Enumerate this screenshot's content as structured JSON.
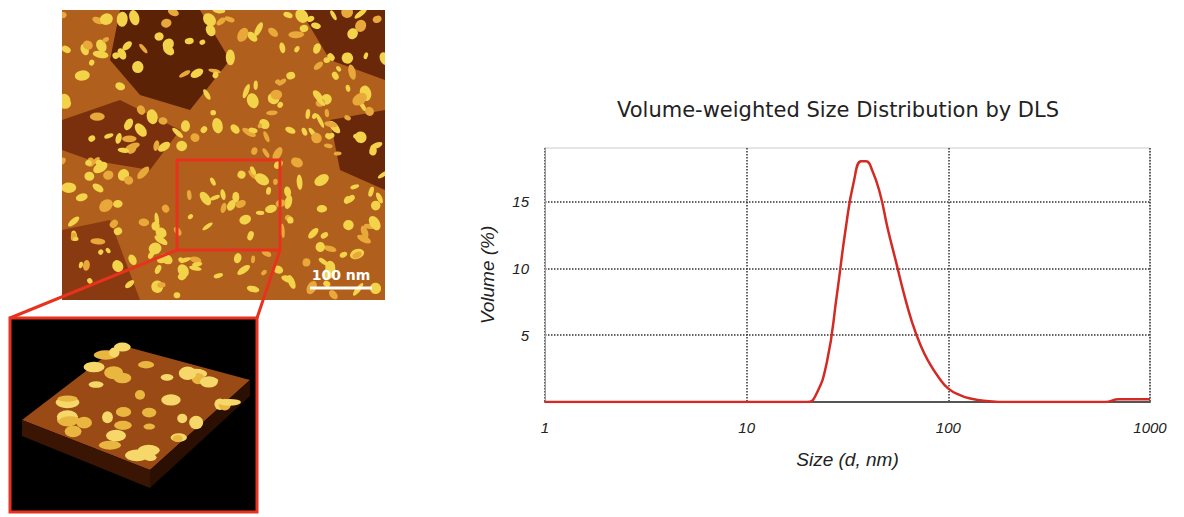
{
  "chart_data": {
    "type": "line",
    "title": "Volume-weighted Size Distribution by DLS",
    "x_label": "Size (d, nm)",
    "y_label": "Volume (%)",
    "annotations": [
      "100 nm"
    ],
    "x": [
      1,
      10,
      20,
      22,
      25,
      28,
      31,
      34,
      37,
      39,
      42,
      46,
      50,
      55,
      60,
      66,
      73,
      80,
      90,
      100,
      115,
      130,
      150,
      200,
      400,
      600,
      700,
      1000
    ],
    "values": [
      0,
      0,
      0,
      0.5,
      3,
      8,
      13,
      16.5,
      18,
      18,
      17.3,
      15.5,
      13,
      10.5,
      8.2,
      6,
      4.2,
      3,
      1.8,
      1,
      0.5,
      0.25,
      0.1,
      0,
      0,
      0,
      0.2,
      0.2
    ],
    "color": "#d42a24",
    "xlim": [
      1,
      1000
    ],
    "xticks": [
      1,
      10,
      100,
      1000
    ],
    "ylim": [
      0,
      19
    ],
    "yticks": [
      5,
      10,
      15
    ],
    "log": "x",
    "grid": true
  }
}
